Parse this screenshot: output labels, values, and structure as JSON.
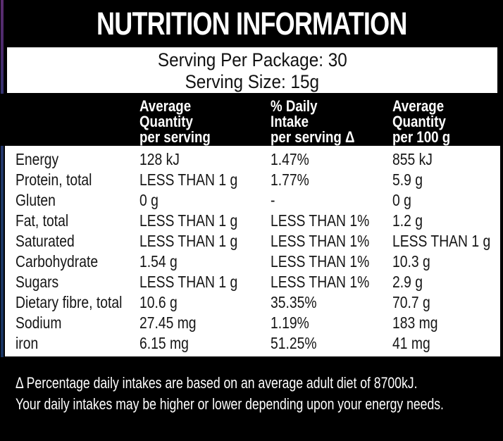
{
  "label": {
    "title": "NUTRITION INFORMATION",
    "serving_per_package": "Serving Per Package: 30",
    "serving_size": "Serving Size: 15g",
    "footnote_line1": "Δ Percentage daily intakes are based on an average adult diet of 8700kJ.",
    "footnote_line2": "Your daily intakes may be higher or lower depending upon your energy needs."
  },
  "table": {
    "columns": [
      {
        "id": "avg_qty_per_serving",
        "lines": [
          "Average",
          "Quantity",
          "per serving"
        ]
      },
      {
        "id": "daily_intake_per_serving",
        "lines": [
          "% Daily",
          "Intake",
          "per serving Δ"
        ]
      },
      {
        "id": "avg_qty_per_100g",
        "lines": [
          "Average",
          "Quantity",
          "per 100 g"
        ]
      }
    ],
    "rows": [
      {
        "name": "Energy",
        "per_serving": "128 kJ",
        "daily_intake": "1.47%",
        "per_100g": "855 kJ"
      },
      {
        "name": "Protein, total",
        "per_serving": "LESS THAN 1 g",
        "daily_intake": "1.77%",
        "per_100g": "5.9 g"
      },
      {
        "name": "Gluten",
        "per_serving": "0 g",
        "daily_intake": "-",
        "per_100g": "0 g"
      },
      {
        "name": "Fat, total",
        "per_serving": "LESS THAN 1 g",
        "daily_intake": "LESS THAN 1%",
        "per_100g": "1.2 g"
      },
      {
        "name": "Saturated",
        "per_serving": "LESS THAN 1 g",
        "daily_intake": "LESS THAN 1%",
        "per_100g": "LESS THAN 1 g"
      },
      {
        "name": "Carbohydrate",
        "per_serving": "1.54 g",
        "daily_intake": "LESS THAN 1%",
        "per_100g": "10.3 g"
      },
      {
        "name": "Sugars",
        "per_serving": "LESS THAN 1 g",
        "daily_intake": "LESS THAN 1%",
        "per_100g": "2.9 g"
      },
      {
        "name": "Dietary fibre, total",
        "per_serving": "10.6 g",
        "daily_intake": "35.35%",
        "per_100g": "70.7 g"
      },
      {
        "name": "Sodium",
        "per_serving": "27.45 mg",
        "daily_intake": "1.19%",
        "per_100g": "183 mg"
      },
      {
        "name": "iron",
        "per_serving": "6.15 mg",
        "daily_intake": "51.25%",
        "per_100g": "41 mg"
      }
    ]
  },
  "colors": {
    "background": "#000000",
    "panel": "#ffffff",
    "text_dark": "#151515",
    "text_light": "#ffffff",
    "edge_purple": "#5c2d70",
    "edge_navy": "#1e3a68"
  }
}
